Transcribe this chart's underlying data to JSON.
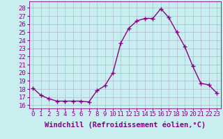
{
  "x": [
    0,
    1,
    2,
    3,
    4,
    5,
    6,
    7,
    8,
    9,
    10,
    11,
    12,
    13,
    14,
    15,
    16,
    17,
    18,
    19,
    20,
    21,
    22,
    23
  ],
  "y": [
    18.1,
    17.2,
    16.8,
    16.5,
    16.5,
    16.5,
    16.5,
    16.4,
    17.8,
    18.4,
    20.0,
    23.7,
    25.5,
    26.4,
    26.7,
    26.7,
    27.9,
    26.8,
    25.0,
    23.2,
    20.8,
    18.7,
    18.5,
    17.5
  ],
  "line_color": "#880088",
  "marker": "+",
  "markersize": 4,
  "linewidth": 1.0,
  "xlabel": "Windchill (Refroidissement éolien,°C)",
  "xlabel_fontsize": 7.5,
  "yticks": [
    16,
    17,
    18,
    19,
    20,
    21,
    22,
    23,
    24,
    25,
    26,
    27,
    28
  ],
  "xtick_labels": [
    "0",
    "1",
    "2",
    "3",
    "4",
    "5",
    "6",
    "7",
    "8",
    "9",
    "10",
    "11",
    "12",
    "13",
    "14",
    "15",
    "16",
    "17",
    "18",
    "19",
    "20",
    "21",
    "22",
    "23"
  ],
  "xlim": [
    -0.5,
    23.5
  ],
  "ylim": [
    15.6,
    28.8
  ],
  "bg_color": "#c8eef0",
  "grid_color": "#b0b8d0",
  "tick_fontsize": 6.5,
  "tick_color": "#880088"
}
